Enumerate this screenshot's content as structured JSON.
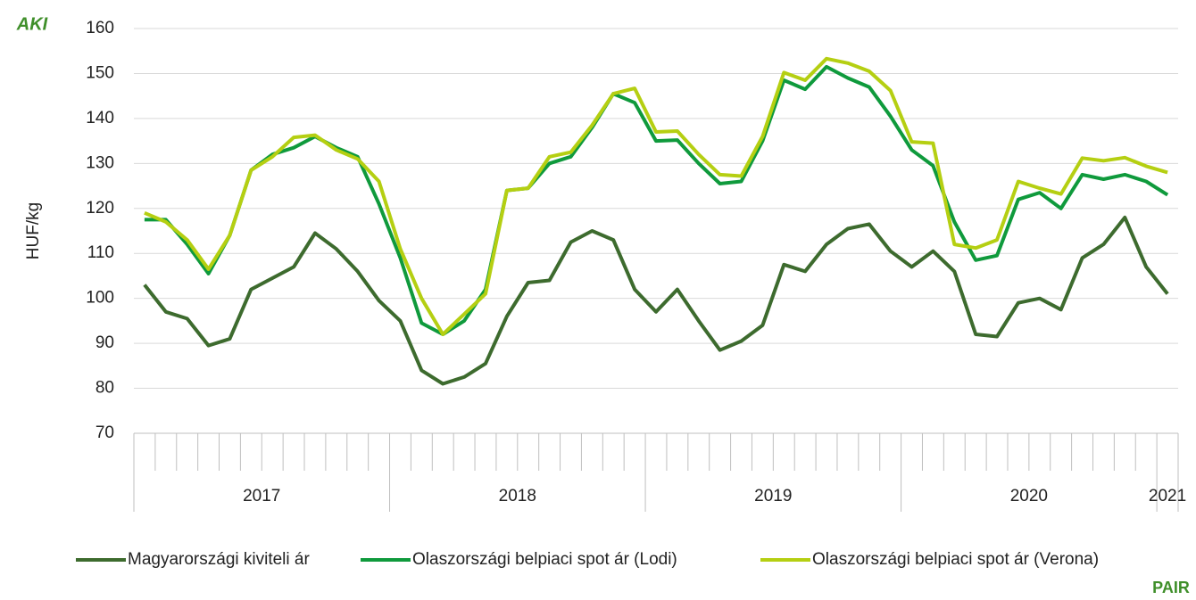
{
  "chart_data": {
    "type": "line",
    "y_label": "HUF/kg",
    "logos": [
      "AKI",
      "PAIR"
    ],
    "categories": [
      "2017",
      null,
      null,
      null,
      null,
      null,
      null,
      null,
      null,
      null,
      null,
      null,
      "2018",
      null,
      null,
      null,
      null,
      null,
      null,
      null,
      null,
      null,
      null,
      null,
      "2019",
      null,
      null,
      null,
      null,
      null,
      null,
      null,
      null,
      null,
      null,
      null,
      "2020",
      null,
      null,
      null,
      null,
      null,
      null,
      null,
      null,
      null,
      null,
      null,
      "2021"
    ],
    "ylim": [
      70,
      160
    ],
    "yticks": [
      70,
      80,
      90,
      100,
      110,
      120,
      130,
      140,
      150,
      160
    ],
    "grid": true,
    "legend": "bottom",
    "series": [
      {
        "name": "Magyarországi kiviteli ár",
        "color": "#3d6b2e",
        "values": [
          103,
          97,
          95.5,
          89.5,
          91,
          102,
          104.5,
          107,
          114.5,
          111,
          106,
          99.5,
          95,
          84,
          81,
          82.5,
          85.5,
          96,
          103.5,
          104,
          112.5,
          115,
          113,
          102,
          97,
          102,
          95,
          88.5,
          90.5,
          94,
          107.5,
          106,
          112,
          115.5,
          116.5,
          110.5,
          107,
          110.5,
          106,
          92,
          91.5,
          99,
          100,
          97.5,
          109,
          112,
          118,
          107,
          101
        ]
      },
      {
        "name": "Olaszországi belpiaci spot ár (Lodi)",
        "color": "#0f9a3c",
        "values": [
          117.5,
          117.5,
          112,
          105.5,
          114,
          128.5,
          132,
          133.5,
          136,
          133.5,
          131.5,
          121,
          109,
          94.5,
          92,
          95,
          102,
          124,
          124.5,
          130,
          131.5,
          138,
          145.5,
          143.5,
          135,
          135.2,
          130,
          125.5,
          126,
          135,
          148.5,
          146.5,
          151.5,
          149,
          147,
          140.5,
          133,
          129.5,
          117,
          108.5,
          109.5,
          122,
          123.5,
          120,
          127.5,
          126.5,
          127.5,
          126,
          123
        ]
      },
      {
        "name": "Olaszországi belpiaci spot ár (Verona)",
        "color": "#b5cf12",
        "values": [
          119,
          117,
          113,
          106.5,
          114,
          128.5,
          131.5,
          135.8,
          136.3,
          133,
          131,
          126,
          111,
          100,
          92,
          96.5,
          101,
          124,
          124.5,
          131.5,
          132.5,
          138.5,
          145.5,
          146.7,
          137,
          137.2,
          132,
          127.5,
          127.2,
          136,
          150.2,
          148.5,
          153.3,
          152.3,
          150.5,
          146.2,
          134.8,
          134.5,
          112,
          111.2,
          113,
          126,
          124.5,
          123.2,
          131.2,
          130.6,
          131.3,
          129.4,
          128
        ]
      }
    ]
  }
}
